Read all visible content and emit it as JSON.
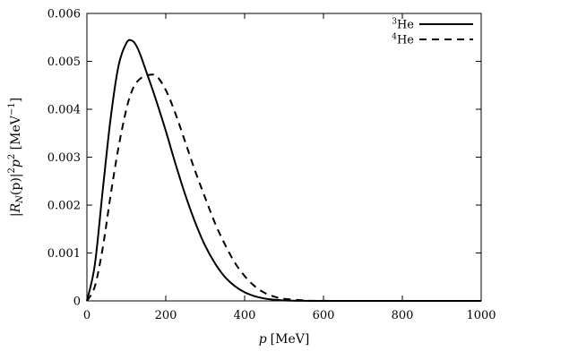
{
  "chart_data": {
    "type": "line",
    "title": "",
    "xlabel_symbol": "p",
    "xlabel_unit": "[MeV]",
    "ylabel": "|R_N(p)|^2 p^2 [MeV^-1]",
    "ylabel_parts": {
      "bar_left": "|",
      "R": "R",
      "sub": "N",
      "arg": "(p)|",
      "sup2a": "2",
      "p": "p",
      "sup2b": "2",
      "unit_open": " [MeV",
      "unit_sup": "−1",
      "unit_close": "]"
    },
    "xlim": [
      0,
      1000
    ],
    "ylim": [
      0,
      0.006
    ],
    "xticks": [
      0,
      200,
      400,
      600,
      800,
      1000
    ],
    "xtick_labels": [
      "0",
      "200",
      "400",
      "600",
      "800",
      "1000"
    ],
    "yticks": [
      0,
      0.001,
      0.002,
      0.003,
      0.004,
      0.005,
      0.006
    ],
    "ytick_labels": [
      "0",
      "0.001",
      "0.002",
      "0.003",
      "0.004",
      "0.005",
      "0.006"
    ],
    "grid": false,
    "legend_position": "top-right",
    "x": [
      0,
      20,
      40,
      60,
      80,
      100,
      115,
      130,
      150,
      175,
      200,
      225,
      250,
      275,
      300,
      325,
      350,
      375,
      400,
      425,
      450,
      475,
      500,
      550,
      600,
      700,
      800,
      900,
      1000
    ],
    "series": [
      {
        "name_sup": "3",
        "name": "He",
        "style": "solid",
        "values": [
          0,
          0.00075,
          0.0023,
          0.0038,
          0.0049,
          0.00538,
          0.00543,
          0.00525,
          0.0048,
          0.0042,
          0.00355,
          0.00285,
          0.0022,
          0.00163,
          0.00115,
          0.00078,
          0.0005,
          0.00031,
          0.00018,
          0.0001,
          5e-05,
          2.5e-05,
          1e-05,
          2e-06,
          0,
          0,
          0,
          0,
          0
        ]
      },
      {
        "name_sup": "4",
        "name": "He",
        "style": "dashed",
        "values": [
          0,
          0.0003,
          0.0011,
          0.0022,
          0.0032,
          0.004,
          0.0044,
          0.0046,
          0.0047,
          0.0047,
          0.0044,
          0.0039,
          0.0033,
          0.0027,
          0.00215,
          0.00162,
          0.00118,
          0.0008,
          0.00052,
          0.00031,
          0.00017,
          9e-05,
          4.5e-05,
          1e-05,
          2e-06,
          0,
          0,
          0,
          0
        ]
      }
    ]
  }
}
